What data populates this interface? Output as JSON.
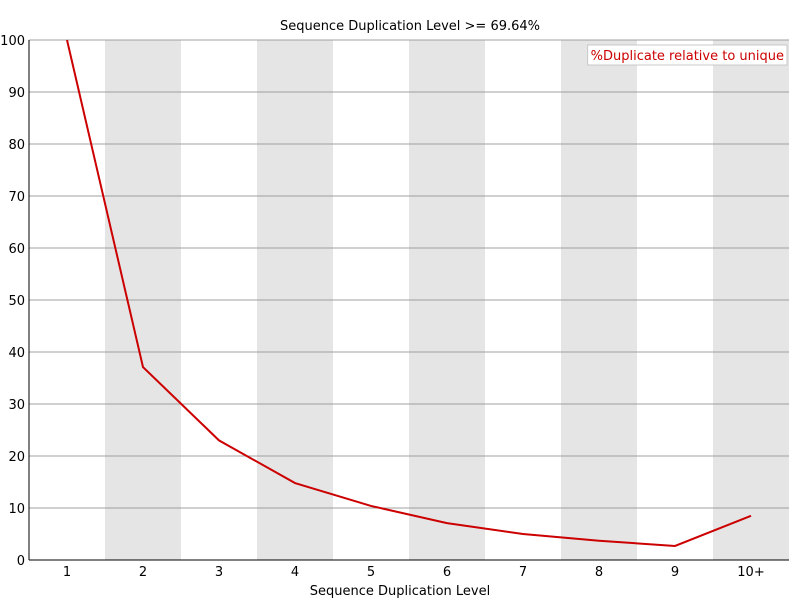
{
  "chart_data": {
    "type": "line",
    "title": "Sequence Duplication Level >= 69.64%",
    "xlabel": "Sequence Duplication Level",
    "ylabel": "",
    "categories": [
      "1",
      "2",
      "3",
      "4",
      "5",
      "6",
      "7",
      "8",
      "9",
      "10+"
    ],
    "ylim": [
      0,
      100
    ],
    "yticks": [
      0,
      10,
      20,
      30,
      40,
      50,
      60,
      70,
      80,
      90,
      100
    ],
    "series": [
      {
        "name": "%Duplicate relative to unique",
        "color": "#cc0000",
        "values": [
          100,
          37.1,
          23.0,
          14.8,
          10.4,
          7.1,
          5.0,
          3.7,
          2.7,
          8.5
        ]
      }
    ],
    "grid": true,
    "band_color": "#e5e5e5",
    "legend_position": "top-right"
  }
}
